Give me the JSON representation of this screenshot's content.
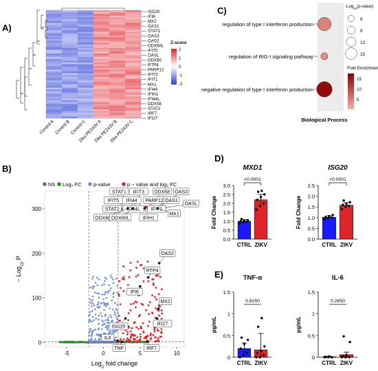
{
  "colors": {
    "heat_low": "#2b3fd6",
    "heat_mid": "#ffffff",
    "heat_high": "#e0242b",
    "volcano_ns": "#6e6e6e",
    "volcano_log2fc": "#2e8b2e",
    "volcano_p": "#6f8fe0",
    "volcano_both": "#e0242b",
    "bar_ctrl": "#1a1aff",
    "bar_zikv": "#e0242b",
    "go_light": "#f6b3a8",
    "go_dark": "#8b0000",
    "go_panel": "#ebebeb"
  },
  "panel_labels": [
    "A)",
    "B)",
    "C)",
    "D)",
    "E)"
  ],
  "heatmap": {
    "samples": [
      "Control A",
      "Control B",
      "Control C",
      "Zika PE243V A",
      "Zika PE243V B",
      "Zika PE243V C"
    ],
    "genes": [
      "ISG20",
      "IFI6",
      "MX2",
      "OAS1",
      "STAT1",
      "OAS3",
      "OAS2",
      "DDX60L",
      "IFIT5",
      "OASL",
      "DDX60",
      "RTP4",
      "PARP12",
      "IFIT3",
      "IFIT1",
      "MX1",
      "IFI44",
      "IFIH1",
      "IFI44L",
      "DDX58",
      "STAT2",
      "IRF7",
      "IFI27"
    ],
    "legend_title": "Z-score",
    "legend_ticks": [
      "2",
      "1",
      "0",
      "-1",
      "-2"
    ]
  },
  "chart_data": [
    {
      "type": "scatter",
      "panel": "B",
      "xlabel_parts": [
        "Log",
        "2",
        " fold change"
      ],
      "ylabel_parts": [
        "− Log",
        "10",
        " P"
      ],
      "xlim": [
        -8,
        11
      ],
      "ylim": [
        -10,
        340
      ],
      "x_ticks": [
        "-5",
        "0",
        "5",
        "10"
      ],
      "x_tick_values": [
        -5,
        0,
        5,
        10
      ],
      "y_ticks": [
        "0",
        "100",
        "200",
        "300"
      ],
      "y_tick_values": [
        0,
        100,
        200,
        300
      ],
      "legend": [
        "NS",
        "Log₂ FC",
        "p-value",
        "p − value and log₂ FC"
      ],
      "fc_cutoff": [
        -2,
        2
      ],
      "p_cutoff": 1.3,
      "labeled_points": [
        {
          "name": "STAT1",
          "x": 4.2,
          "y": 304
        },
        {
          "name": "IFIT3",
          "x": 5.0,
          "y": 304
        },
        {
          "name": "DDX58",
          "x": 6.3,
          "y": 304
        },
        {
          "name": "OAS3",
          "x": 7.6,
          "y": 304
        },
        {
          "name": "IFIT5",
          "x": 3.4,
          "y": 303
        },
        {
          "name": "IFI44",
          "x": 4.6,
          "y": 303
        },
        {
          "name": "PARP12",
          "x": 6.0,
          "y": 303
        },
        {
          "name": "OAS1",
          "x": 7.0,
          "y": 303
        },
        {
          "name": "OASL",
          "x": 8.2,
          "y": 302
        },
        {
          "name": "STAT2",
          "x": 3.8,
          "y": 302
        },
        {
          "name": "IFI44L",
          "x": 5.2,
          "y": 302
        },
        {
          "name": "IFIT1",
          "x": 6.5,
          "y": 302
        },
        {
          "name": "MX1",
          "x": 7.4,
          "y": 301
        },
        {
          "name": "DDX60",
          "x": 3.3,
          "y": 301
        },
        {
          "name": "DDX60L",
          "x": 4.0,
          "y": 301
        },
        {
          "name": "IFIH1",
          "x": 5.6,
          "y": 301
        },
        {
          "name": "OAS2",
          "x": 7.6,
          "y": 178
        },
        {
          "name": "RTP4",
          "x": 6.1,
          "y": 146
        },
        {
          "name": "IFI6",
          "x": 5.0,
          "y": 126
        },
        {
          "name": "MX2",
          "x": 7.5,
          "y": 76
        },
        {
          "name": "IFI27",
          "x": 7.3,
          "y": 54
        },
        {
          "name": "ISG20",
          "x": 3.0,
          "y": 54
        },
        {
          "name": "IL6",
          "x": 1.9,
          "y": 4
        },
        {
          "name": "TNF",
          "x": 2.5,
          "y": 2
        },
        {
          "name": "IRF7",
          "x": 6.0,
          "y": 2
        }
      ]
    },
    {
      "type": "scatter",
      "panel": "C",
      "xlabel": "Biological Process",
      "categories": [
        "regulation of type I interferon production",
        "regulation of RIG-I signaling pathway",
        "negative regulation of type I interferon production"
      ],
      "pvalue_neglog10": [
        12.5,
        4.5,
        15
      ],
      "fold_enrichment": [
        7,
        6,
        17
      ],
      "size_legend_title_parts": [
        "-Log",
        "10",
        "(",
        "p",
        "-value)"
      ],
      "size_legend": [
        6,
        9,
        12,
        15
      ],
      "color_legend_title": "Fold Enrichment",
      "color_ticks": [
        "15",
        "10",
        "5"
      ]
    },
    {
      "type": "bar",
      "panel": "D",
      "subplots": [
        {
          "title": "MXD1",
          "ylabel": "Fold Change",
          "categories": [
            "CTRL",
            "ZIKV"
          ],
          "values": [
            1.0,
            2.2
          ],
          "errors": [
            0.1,
            0.3
          ],
          "ylim": [
            0,
            3.0
          ],
          "y_ticks": [
            0,
            0.5,
            1.0,
            1.5,
            2.0,
            2.5,
            3.0
          ],
          "y_tick_labels": [
            "0.0",
            "0.5",
            "1.0",
            "1.5",
            "2.0",
            "2.5",
            "3.0"
          ],
          "pvalue": "<0.0001",
          "points": [
            [
              0.86,
              0.95,
              0.98,
              1.0,
              1.03,
              1.05,
              1.12
            ],
            [
              1.65,
              1.85,
              2.0,
              2.2,
              2.35,
              2.5,
              2.65,
              2.7
            ]
          ]
        },
        {
          "title": "ISG20",
          "ylabel": "Fold Change",
          "categories": [
            "CTRL",
            "ZIKV"
          ],
          "values": [
            1.02,
            1.58
          ],
          "errors": [
            0.07,
            0.12
          ],
          "ylim": [
            0,
            2.5
          ],
          "y_ticks": [
            0,
            0.5,
            1.0,
            1.5,
            2.0,
            2.5
          ],
          "y_tick_labels": [
            "0.0",
            "0.5",
            "1.0",
            "1.5",
            "2.0",
            "2.5"
          ],
          "pvalue": "<0.0001",
          "points": [
            [
              0.93,
              0.97,
              1.0,
              1.03,
              1.07,
              1.12
            ],
            [
              1.4,
              1.5,
              1.55,
              1.6,
              1.65,
              1.72,
              1.8
            ]
          ]
        }
      ]
    },
    {
      "type": "bar",
      "panel": "E",
      "subplots": [
        {
          "title": "TNF-α",
          "ylabel": "pg/mL",
          "categories": [
            "CTRL",
            "ZIKV"
          ],
          "values": [
            0.2,
            0.17
          ],
          "errors": [
            0.13,
            0.38
          ],
          "ylim": [
            0,
            1.5
          ],
          "y_ticks": [
            0,
            0.5,
            1.0,
            1.5
          ],
          "y_tick_labels": [
            "0",
            "0.5",
            "1",
            "1.5"
          ],
          "pvalue": "0.8250",
          "points": [
            [
              0,
              0.05,
              0.1,
              0.2,
              0.3,
              0.4,
              0.45
            ],
            [
              0,
              0,
              0.05,
              0.1,
              0.15,
              0.25,
              0.7,
              0.9
            ]
          ]
        },
        {
          "title": "IL-6",
          "ylabel": "pg/mL",
          "categories": [
            "CTRL",
            "ZIKV"
          ],
          "values": [
            0.01,
            0.06
          ],
          "errors": [
            0.01,
            0.06
          ],
          "ylim": [
            0,
            1.5
          ],
          "y_ticks": [
            0,
            0.5,
            1.0,
            1.5
          ],
          "y_tick_labels": [
            "0",
            "0.5",
            "1",
            "1.5"
          ],
          "pvalue": "0.2850",
          "points": [
            [
              0,
              0,
              0,
              0.01,
              0.02
            ],
            [
              0,
              0,
              0,
              0.02,
              0.05,
              0.35,
              0.48
            ]
          ]
        }
      ]
    }
  ]
}
